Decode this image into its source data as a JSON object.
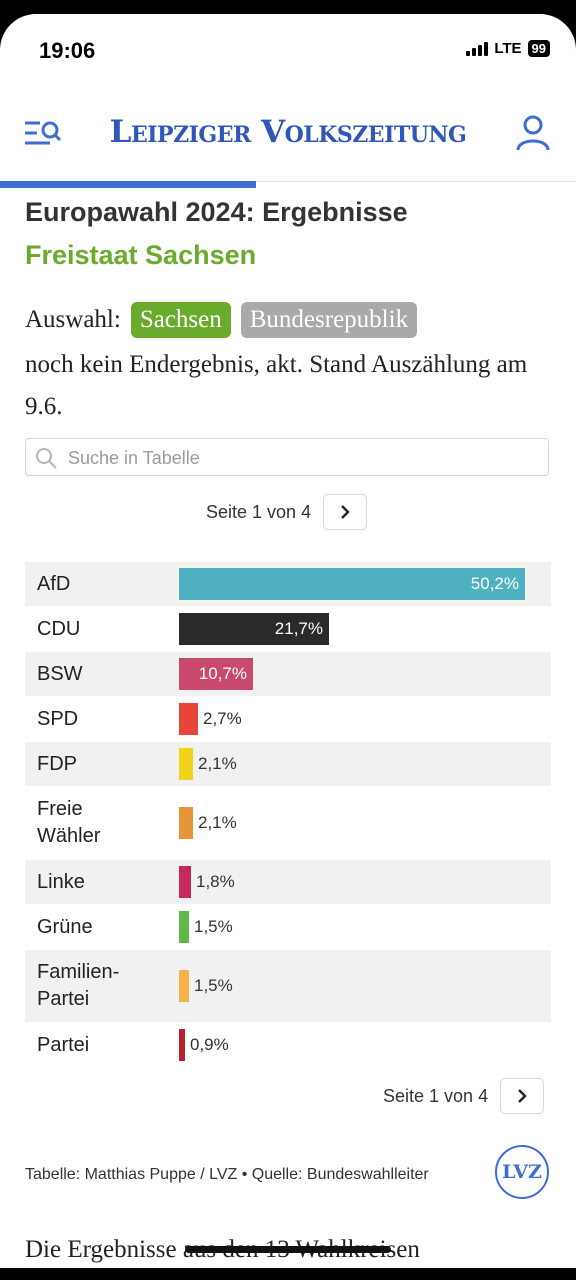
{
  "status_bar": {
    "time": "19:06",
    "network": "LTE",
    "battery": "99"
  },
  "header": {
    "logo": "Leipziger Volkszeitung"
  },
  "article": {
    "title": "Europawahl 2024: Ergebnisse",
    "subtitle": "Freistaat Sachsen",
    "selection_label": "Auswahl:",
    "selection_options": [
      "Sachsen",
      "Bundesrepublik"
    ],
    "selected_option": "Sachsen",
    "status_note": "noch kein Endergebnis, akt. Stand Auszählung am 9.6."
  },
  "search": {
    "placeholder": "Suche in Tabelle",
    "value": ""
  },
  "pagination": {
    "label": "Seite 1 von 4"
  },
  "chart_data": {
    "type": "bar",
    "orientation": "horizontal",
    "categories": [
      "AfD",
      "CDU",
      "BSW",
      "SPD",
      "FDP",
      "Freie Wähler",
      "Linke",
      "Grüne",
      "Familien-Partei",
      "Partei"
    ],
    "values": [
      50.2,
      21.7,
      10.7,
      2.7,
      2.1,
      2.1,
      1.8,
      1.5,
      1.5,
      0.9
    ],
    "value_labels": [
      "50,2%",
      "21,7%",
      "10,7%",
      "2,7%",
      "2,1%",
      "2,1%",
      "1,8%",
      "1,5%",
      "1,5%",
      "0,9%"
    ],
    "display_names": [
      "AfD",
      "CDU",
      "BSW",
      "SPD",
      "FDP",
      "Freie\nWähler",
      "Linke",
      "Grüne",
      "Familien-\nPartei",
      "Partei"
    ],
    "colors": [
      "#4fb0c0",
      "#2a2a2a",
      "#c94a6d",
      "#e8443a",
      "#f3d21a",
      "#e8953a",
      "#c8285e",
      "#5fb84a",
      "#f5b04a",
      "#b5222c"
    ],
    "label_inside_threshold": 10
  },
  "footer": {
    "source": "Tabelle: Matthias Puppe / LVZ • Quelle: Bundeswahlleiter",
    "badge": "LVZ",
    "teaser": "Die Ergebnisse aus den 13 Wahlkreisen"
  }
}
